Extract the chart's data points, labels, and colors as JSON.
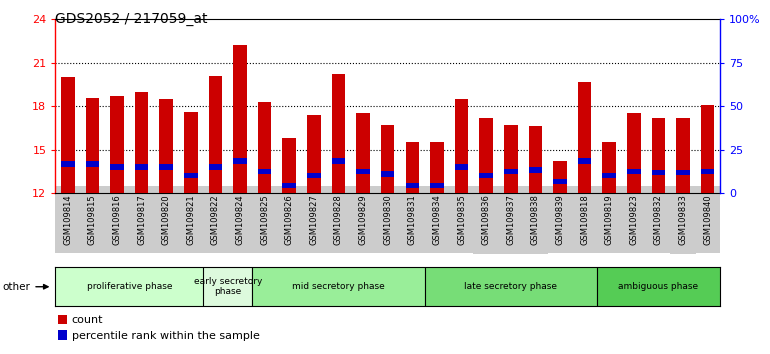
{
  "title": "GDS2052 / 217059_at",
  "samples": [
    "GSM109814",
    "GSM109815",
    "GSM109816",
    "GSM109817",
    "GSM109820",
    "GSM109821",
    "GSM109822",
    "GSM109824",
    "GSM109825",
    "GSM109826",
    "GSM109827",
    "GSM109828",
    "GSM109829",
    "GSM109830",
    "GSM109831",
    "GSM109834",
    "GSM109835",
    "GSM109836",
    "GSM109837",
    "GSM109838",
    "GSM109839",
    "GSM109818",
    "GSM109819",
    "GSM109823",
    "GSM109832",
    "GSM109833",
    "GSM109840"
  ],
  "count_values": [
    20.0,
    18.6,
    18.7,
    19.0,
    18.5,
    17.6,
    20.1,
    22.2,
    18.3,
    15.8,
    17.4,
    20.2,
    17.5,
    16.7,
    15.5,
    15.5,
    18.5,
    17.2,
    16.7,
    16.6,
    14.2,
    19.7,
    15.5,
    17.5,
    17.2,
    17.2,
    18.1
  ],
  "percentile_values": [
    14.0,
    14.0,
    13.8,
    13.8,
    13.8,
    13.2,
    13.8,
    14.2,
    13.5,
    12.5,
    13.2,
    14.2,
    13.5,
    13.3,
    12.5,
    12.5,
    13.8,
    13.2,
    13.5,
    13.6,
    12.8,
    14.2,
    13.2,
    13.5,
    13.4,
    13.4,
    13.5
  ],
  "y_min": 12,
  "y_max": 24,
  "y_ticks_left": [
    12,
    15,
    18,
    21,
    24
  ],
  "right_y_ticks": [
    0,
    25,
    50,
    75,
    100
  ],
  "right_y_labels": [
    "0",
    "25",
    "50",
    "75",
    "100%"
  ],
  "phases": [
    {
      "label": "proliferative phase",
      "start": 0,
      "end": 6,
      "color": "#ccffcc"
    },
    {
      "label": "early secretory\nphase",
      "start": 6,
      "end": 8,
      "color": "#ddfadd"
    },
    {
      "label": "mid secretory phase",
      "start": 8,
      "end": 15,
      "color": "#99ee99"
    },
    {
      "label": "late secretory phase",
      "start": 15,
      "end": 22,
      "color": "#77dd77"
    },
    {
      "label": "ambiguous phase",
      "start": 22,
      "end": 27,
      "color": "#55cc55"
    }
  ],
  "bar_color": "#cc0000",
  "pct_color": "#0000cc",
  "bar_width": 0.55,
  "pct_bar_height": 0.38,
  "tick_label_bg": "#cccccc",
  "grid_color": "#000000",
  "legend_items": [
    {
      "label": "count",
      "color": "#cc0000"
    },
    {
      "label": "percentile rank within the sample",
      "color": "#0000cc"
    }
  ]
}
